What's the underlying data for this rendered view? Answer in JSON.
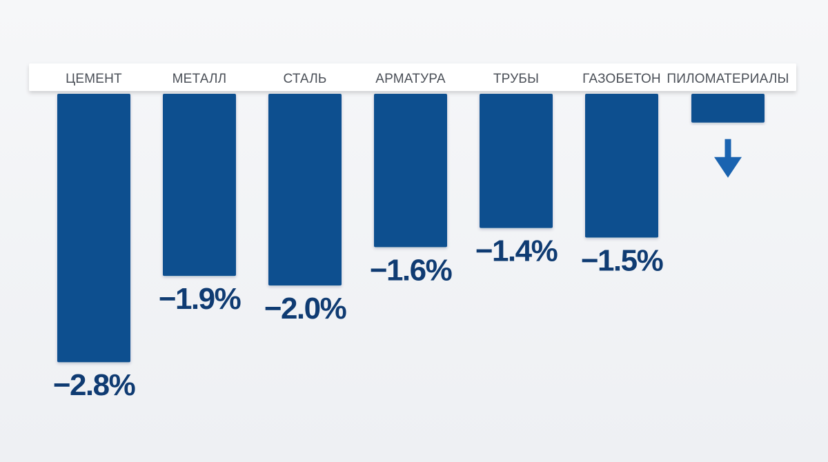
{
  "chart_data": {
    "type": "bar",
    "orientation": "vertical",
    "direction": "downward",
    "categories": [
      "ЦЕМЕНТ",
      "МЕТАЛЛ",
      "СТАЛЬ",
      "АРМАТУРА",
      "ТРУБЫ",
      "ГАЗОБЕТОН",
      "ПИЛОМАТЕРИАЛЫ"
    ],
    "values": [
      -2.8,
      -1.9,
      -2.0,
      -1.6,
      -1.4,
      -1.5,
      -0.3
    ],
    "value_labels": [
      "−2.8%",
      "−1.9%",
      "−2.0%",
      "−1.6%",
      "−1.4%",
      "−1.5%",
      ""
    ],
    "unit": "%",
    "ylim": [
      -3.0,
      0
    ],
    "grid": false,
    "legend": "none",
    "colors": {
      "bar": "#0f4f8f",
      "label": "#0f3b72",
      "category_text": "#4a4f57",
      "header_band": "#ffffff",
      "arrow": "#1a63b0"
    },
    "annotations": [
      {
        "category": "ПИЛОМАТЕРИАЛЫ",
        "icon": "arrow-down-icon"
      }
    ]
  }
}
